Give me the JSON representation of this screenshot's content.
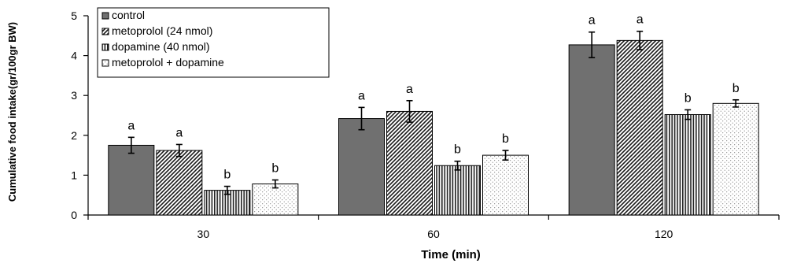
{
  "chart_data": {
    "type": "bar",
    "title": "",
    "xlabel": "Time (min)",
    "ylabel": "Cumulative food intake(gr/100gr BW)",
    "categories": [
      "30",
      "60",
      "120"
    ],
    "ylim": [
      0,
      5
    ],
    "yticks": [
      "0",
      "1",
      "2",
      "3",
      "4",
      "5"
    ],
    "grid": false,
    "legend_position": "top-left",
    "series": [
      {
        "name": "control",
        "pattern": "solid",
        "color": "#707070",
        "values": [
          1.75,
          2.42,
          4.27
        ],
        "errors": [
          0.2,
          0.28,
          0.32
        ],
        "labels": [
          "a",
          "a",
          "a"
        ]
      },
      {
        "name": "metoprolol (24 nmol)",
        "pattern": "diagonal",
        "color": "#707070",
        "values": [
          1.62,
          2.6,
          4.38
        ],
        "errors": [
          0.15,
          0.27,
          0.23
        ],
        "labels": [
          "a",
          "a",
          "a"
        ]
      },
      {
        "name": "dopamine (40 nmol)",
        "pattern": "vertical",
        "color": "#707070",
        "values": [
          0.62,
          1.24,
          2.52
        ],
        "errors": [
          0.1,
          0.11,
          0.12
        ],
        "labels": [
          "b",
          "b",
          "b"
        ]
      },
      {
        "name": "metoprolol + dopamine",
        "pattern": "dots",
        "color": "#a0a0a0",
        "values": [
          0.78,
          1.5,
          2.8
        ],
        "errors": [
          0.1,
          0.12,
          0.09
        ],
        "labels": [
          "b",
          "b",
          "b"
        ]
      }
    ]
  }
}
